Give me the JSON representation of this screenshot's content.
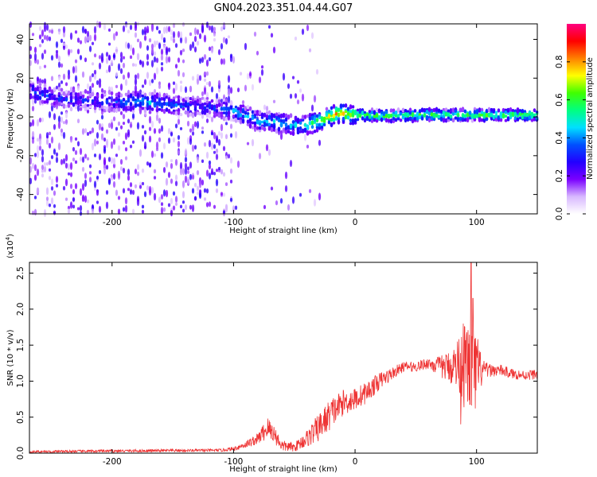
{
  "title": "GN04.2023.351.04.44.G07",
  "chart_data": [
    {
      "type": "heatmap",
      "xlabel": "Height of straight line (km)",
      "ylabel": "Frequency (Hz)",
      "xlim": [
        -268,
        150
      ],
      "ylim": [
        -50,
        48
      ],
      "xticks": [
        -200,
        -100,
        0,
        100
      ],
      "yticks": [
        -40,
        -20,
        0,
        20,
        40
      ],
      "colorbar": {
        "label": "Normalized spectral amplitude",
        "range": [
          0,
          1
        ],
        "ticks": [
          "0.0",
          "0.2",
          "0.4",
          "0.6",
          "0.8"
        ],
        "tick_values": [
          0,
          0.2,
          0.4,
          0.6,
          0.8
        ],
        "colors": [
          "#ffffff",
          "#d8b8ff",
          "#7a00ff",
          "#2200ff",
          "#0050ff",
          "#00e0ff",
          "#00ff80",
          "#40ff00",
          "#ffff00",
          "#ff8000",
          "#ff0000",
          "#ff0080"
        ]
      },
      "ridge": {
        "x": [
          -268,
          -240,
          -200,
          -180,
          -150,
          -120,
          -100,
          -80,
          -60,
          -45,
          -30,
          -15,
          0,
          20,
          60,
          100,
          150
        ],
        "freq": [
          13,
          9,
          8,
          8,
          6,
          5,
          3,
          -2,
          -3,
          -5,
          -2,
          2,
          1,
          0.5,
          1,
          1,
          1
        ],
        "amplitude": [
          0.35,
          0.3,
          0.3,
          0.45,
          0.35,
          0.3,
          0.4,
          0.45,
          0.45,
          0.45,
          0.6,
          0.8,
          0.6,
          0.6,
          0.6,
          0.6,
          0.6
        ]
      }
    },
    {
      "type": "line",
      "xlabel": "Height of straight line (km)",
      "ylabel": "SNR (10 * v/v)",
      "multiplier": "(x10",
      "multiplier_exp": "4",
      "multiplier_close": ")",
      "xlim": [
        -268,
        150
      ],
      "ylim": [
        0,
        26500
      ],
      "xticks": [
        -200,
        -100,
        0,
        100
      ],
      "yticks": [
        0,
        5000,
        10000,
        15000,
        20000,
        25000
      ],
      "ytick_labels": [
        "0.0",
        "0.5",
        "1.0",
        "1.5",
        "2.0",
        "2.5"
      ],
      "color": "#ee3333",
      "envelope": {
        "x": [
          -268,
          -200,
          -150,
          -110,
          -100,
          -90,
          -80,
          -72,
          -68,
          -60,
          -50,
          -40,
          -30,
          -20,
          -10,
          0,
          10,
          20,
          30,
          40,
          50,
          60,
          70,
          80,
          85,
          90,
          95,
          100,
          105,
          110,
          120,
          130,
          140,
          150
        ],
        "mean": [
          200,
          300,
          350,
          400,
          600,
          1200,
          2000,
          3500,
          3000,
          1000,
          800,
          2000,
          3500,
          5500,
          7000,
          7500,
          8500,
          10000,
          11000,
          12000,
          12000,
          12500,
          12000,
          12000,
          12500,
          12000,
          12000,
          11000,
          11500,
          11500,
          11500,
          11000,
          10800,
          11000
        ],
        "noise": [
          150,
          200,
          200,
          200,
          300,
          500,
          800,
          1600,
          1400,
          800,
          600,
          1200,
          2000,
          2200,
          1800,
          1600,
          1500,
          1200,
          900,
          700,
          700,
          800,
          1500,
          2500,
          4000,
          6000,
          7000,
          6000,
          1500,
          900,
          800,
          700,
          700,
          700
        ]
      },
      "spikes": [
        {
          "x": 95.5,
          "y": 26500
        },
        {
          "x": 97,
          "y": 21500
        },
        {
          "x": 89,
          "y": 18000
        },
        {
          "x": 87,
          "y": 4000
        }
      ]
    }
  ]
}
